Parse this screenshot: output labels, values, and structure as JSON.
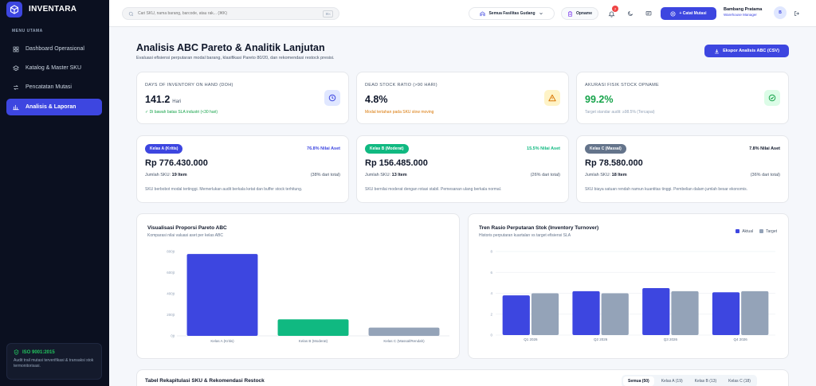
{
  "app": {
    "name": "INVENTARA"
  },
  "sidebar": {
    "menu_title": "MENU UTAMA",
    "items": [
      {
        "label": "Dashboard Operasional",
        "icon": "grid-icon"
      },
      {
        "label": "Katalog & Master SKU",
        "icon": "layers-icon"
      },
      {
        "label": "Pencatatan Mutasi",
        "icon": "swap-icon"
      },
      {
        "label": "Analisis & Laporan",
        "icon": "bar-chart-icon",
        "active": true
      }
    ],
    "iso": {
      "title": "ISO 9001:2015",
      "desc": "Audit trail mutasi terverifikasi & transaksi stok termonitorisasi."
    }
  },
  "topbar": {
    "search_placeholder": "Cari SKU, nama barang, barcode, atau rak... (⌘K)",
    "search_kbd": "⌘K",
    "facility_select": "Semua Fasilitas Gudang",
    "opname_label": "Opname",
    "notif_count": "7",
    "catat_label": "+ Catat Mutasi",
    "user_name": "Bambang Pratama",
    "user_role": "Warehouse Manager",
    "avatar_initial": "B"
  },
  "page": {
    "title": "Analisis ABC Pareto & Analitik Lanjutan",
    "subtitle": "Evaluasi efisiensi perputaran modal barang, klasifikasi Pareto 80/20, dan rekomendasi restock presisi.",
    "export_label": "Ekspor Analisis ABC (CSV)"
  },
  "kpis": [
    {
      "label": "DAYS OF INVENTORY ON HAND (DOH)",
      "value": "141.2",
      "unit": "Hari",
      "note": "✓ Di bawah batas SLA industri (<30 hari)",
      "note_color": "#16a34a",
      "icon": "clock-icon",
      "icon_bg": "#e0e7ff",
      "icon_color": "#3d46e0"
    },
    {
      "label": "DEAD STOCK RATIO (>90 HARI)",
      "value": "4.8%",
      "unit": "",
      "note": "Modal tertahan pada SKU slow moving",
      "note_color": "#d97706",
      "icon": "warning-icon",
      "icon_bg": "#fef3c7",
      "icon_color": "#d97706"
    },
    {
      "label": "AKURASI FISIK STOCK OPNAME",
      "value": "99.2%",
      "unit": "",
      "note": "Target standar audit: ≥98.5% (Tercapai)",
      "note_color": "#94a3b8",
      "icon": "check-circle-icon",
      "icon_bg": "#dcfce7",
      "icon_color": "#16a34a",
      "value_color": "#16a34a"
    }
  ],
  "classes": [
    {
      "label": "Kelas A (Kritis)",
      "color": "#3d46e0",
      "share": "76.8% Nilai Aset",
      "value": "Rp 776.430.000",
      "count_label": "Jumlah SKU:",
      "count": "19 Item",
      "pct": "(38% dari total)",
      "desc": "SKU berbobot modal tertinggi. Memerlukan audit berkala ketat dan buffer stock terhitung."
    },
    {
      "label": "Kelas B (Moderat)",
      "color": "#10b981",
      "share": "15.5% Nilai Aset",
      "value": "Rp 156.485.000",
      "count_label": "Jumlah SKU:",
      "count": "13 Item",
      "pct": "(26% dari total)",
      "desc": "SKU bernilai moderat dengan rotasi stabil. Pemesanan ulang berkala normal."
    },
    {
      "label": "Kelas C (Massal)",
      "color": "#64748b",
      "share": "7.8% Nilai Aset",
      "value": "Rp 78.580.000",
      "count_label": "Jumlah SKU:",
      "count": "18 Item",
      "pct": "(36% dari total)",
      "desc": "SKU biaya satuan rendah namun kuantitas tinggi. Pembelian dalam jumlah besar ekonomis."
    }
  ],
  "pareto_chart": {
    "title": "Visualisasi Proporsi Pareto ABC",
    "subtitle": "Komparasi nilai valuasi aset per kelas ABC"
  },
  "turnover_chart": {
    "title": "Tren Rasio Perputaran Stok (Inventory Turnover)",
    "subtitle": "Historis perputaran kuartalan vs target efisiensi SLA",
    "legend_actual": "Aktual",
    "legend_target": "Target"
  },
  "chart_data": [
    {
      "type": "bar",
      "title": "Visualisasi Proporsi Pareto ABC",
      "categories": [
        "Kelas A (Kritis)",
        "Kelas B (Moderat)",
        "Kelas C (Massal/Rendah)"
      ],
      "values": [
        776.43,
        156.485,
        78.58
      ],
      "colors": [
        "#3d46e0",
        "#10b981",
        "#94a3b8"
      ],
      "yticks": [
        "800jt",
        "600jt",
        "400jt",
        "200jt",
        "0jt"
      ],
      "ylim": [
        0,
        800
      ],
      "grid": false
    },
    {
      "type": "bar",
      "title": "Tren Rasio Perputaran Stok (Inventory Turnover)",
      "categories": [
        "Q1 2026",
        "Q2 2026",
        "Q3 2026",
        "Q4 2026"
      ],
      "series": [
        {
          "name": "Aktual",
          "values": [
            3.8,
            4.2,
            4.5,
            4.1
          ],
          "color": "#3d46e0"
        },
        {
          "name": "Target",
          "values": [
            4.0,
            4.0,
            4.2,
            4.2
          ],
          "color": "#94a3b8"
        }
      ],
      "yticks": [
        "8",
        "6",
        "4",
        "2",
        "0"
      ],
      "ylim": [
        0,
        8
      ],
      "legend": "top-right",
      "grid": true
    }
  ],
  "table": {
    "title": "Tabel Rekapitulasi SKU & Rekomendasi Restock",
    "tabs": [
      "Semua (50)",
      "Kelas A (19)",
      "Kelas B (13)",
      "Kelas C (18)"
    ]
  }
}
